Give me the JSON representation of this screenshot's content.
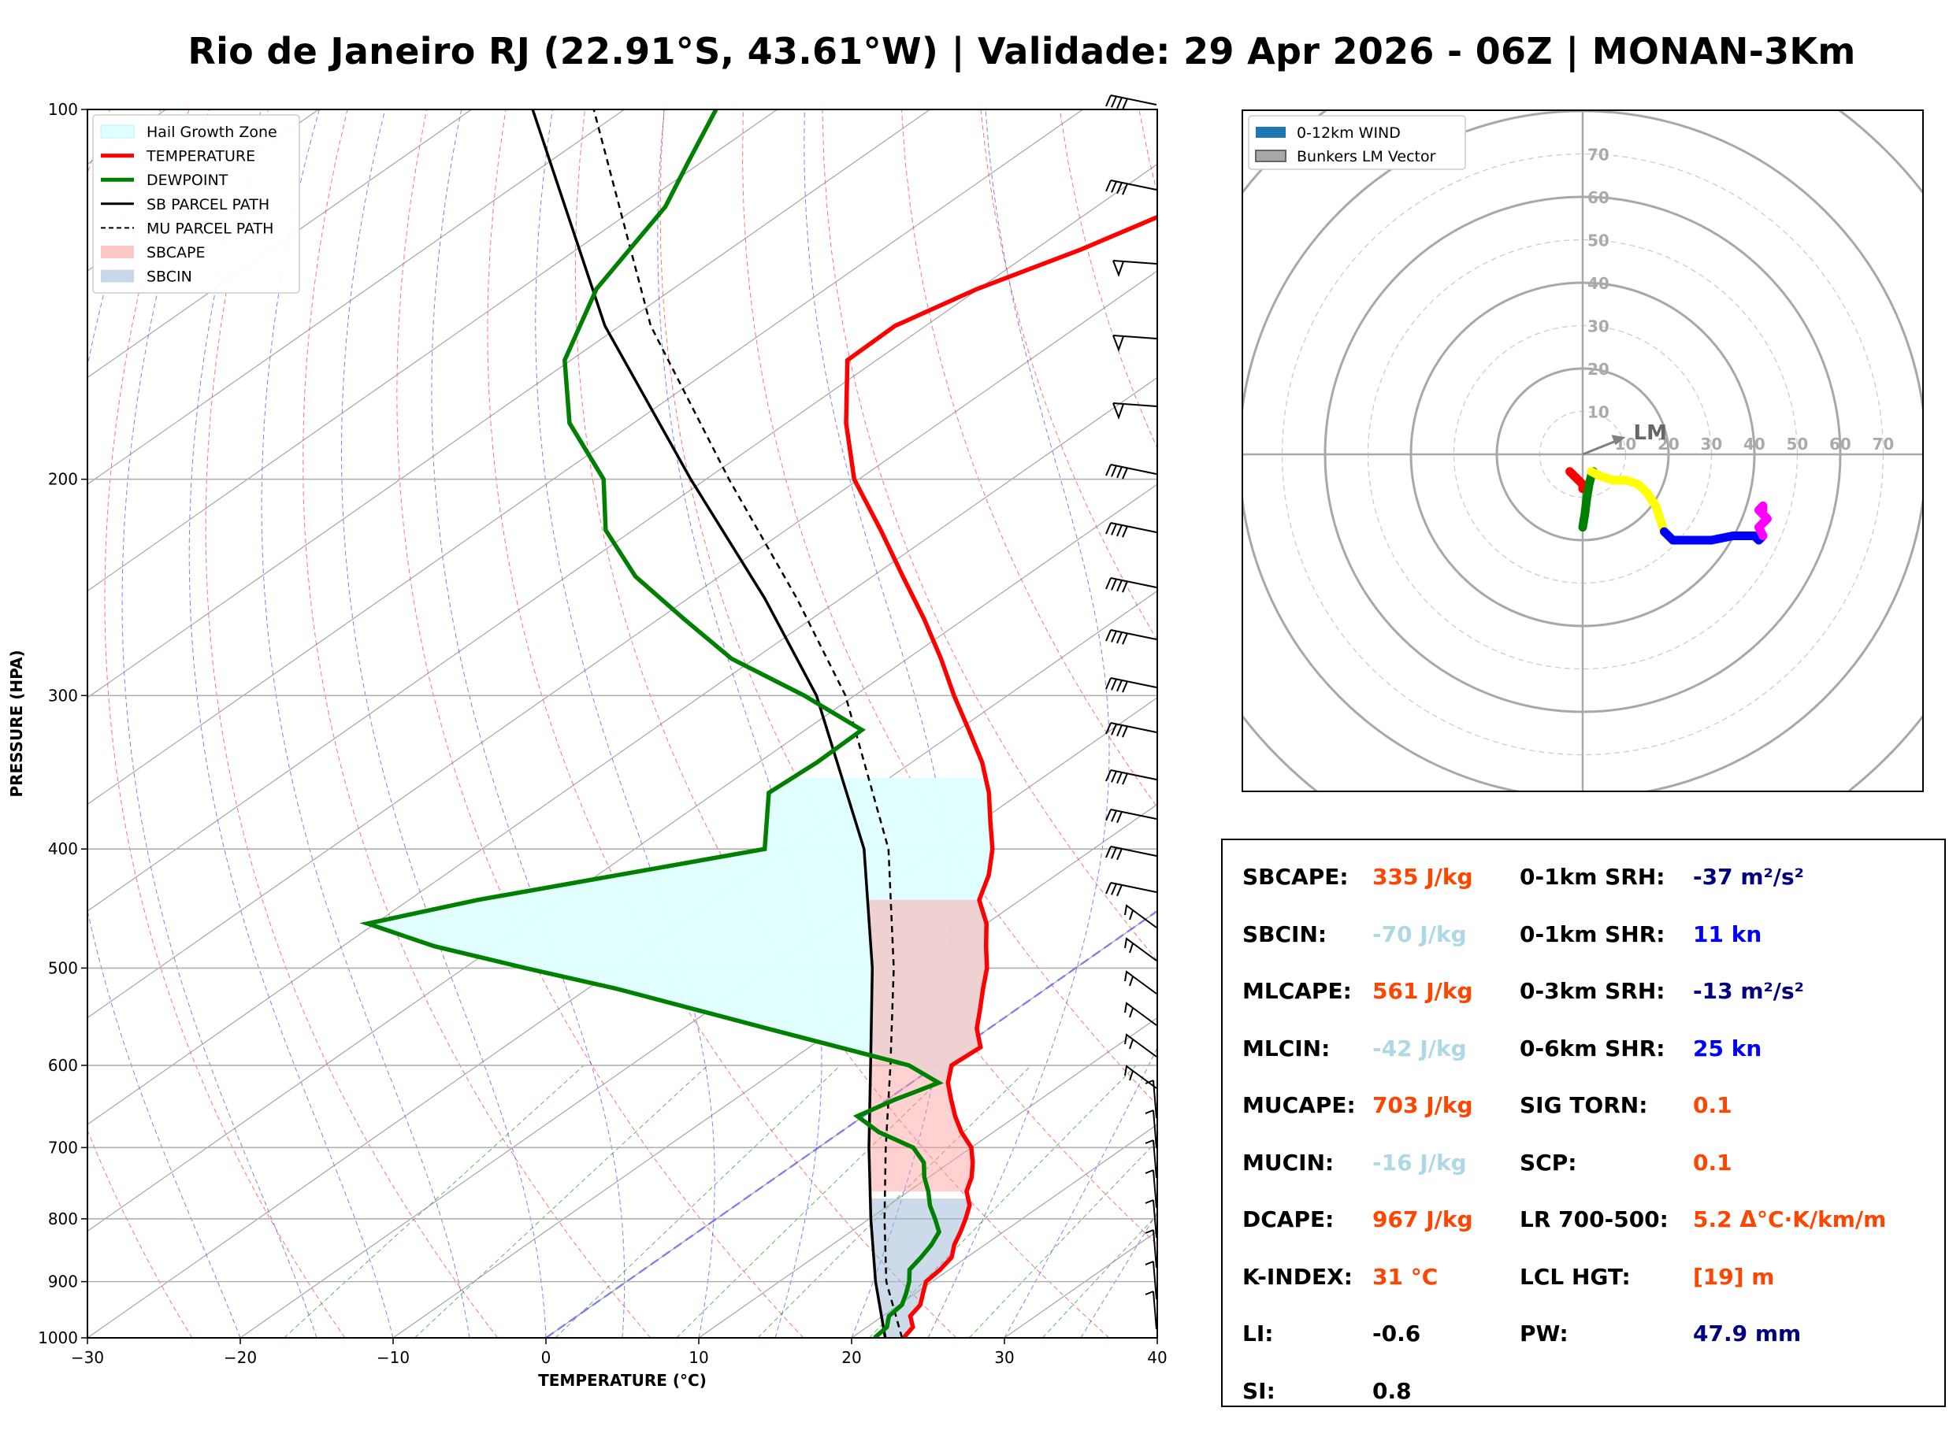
{
  "title": "Rio de Janeiro RJ (22.91°S, 43.61°W) | Validade: 29 Apr 2026 - 06Z | MONAN-3Km",
  "skewt": {
    "xlabel": "TEMPERATURE (°C)",
    "ylabel": "PRESSURE (HPA)",
    "xticks": [
      -30,
      -20,
      -10,
      0,
      10,
      20,
      30,
      40
    ],
    "xtick_labels": [
      "−30",
      "−20",
      "−10",
      "0",
      "10",
      "20",
      "30",
      "40"
    ],
    "yticks": [
      100,
      200,
      300,
      400,
      500,
      600,
      700,
      800,
      900,
      1000
    ],
    "ytick_labels": [
      "100",
      "200",
      "300",
      "400",
      "500",
      "600",
      "700",
      "800",
      "900",
      "1000"
    ],
    "legend": [
      "Hail Growth Zone",
      "TEMPERATURE",
      "DEWPOINT",
      "SB PARCEL PATH",
      "MU PARCEL PATH",
      "SBCAPE",
      "SBCIN"
    ]
  },
  "hodograph": {
    "legend": [
      "0-12km WIND",
      "Bunkers LM Vector"
    ],
    "ring_labels": [
      "10",
      "20",
      "30",
      "40",
      "50",
      "60",
      "70"
    ],
    "lm_label": "LM"
  },
  "stats": {
    "left": [
      {
        "label": "SBCAPE:",
        "value": "335 J/kg",
        "color": "#ff4500"
      },
      {
        "label": "SBCIN:",
        "value": "-70 J/kg",
        "color": "#add8e6"
      },
      {
        "label": "MLCAPE:",
        "value": "561 J/kg",
        "color": "#ff4500"
      },
      {
        "label": "MLCIN:",
        "value": "-42 J/kg",
        "color": "#add8e6"
      },
      {
        "label": "MUCAPE:",
        "value": "703 J/kg",
        "color": "#ff4500"
      },
      {
        "label": "MUCIN:",
        "value": "-16 J/kg",
        "color": "#add8e6"
      },
      {
        "label": "DCAPE:",
        "value": "967 J/kg",
        "color": "#ff4500"
      },
      {
        "label": "K-INDEX:",
        "value": "31 °C",
        "color": "#ff4500"
      },
      {
        "label": "LI:",
        "value": "-0.6",
        "color": "#000000"
      },
      {
        "label": "SI:",
        "value": "0.8",
        "color": "#000000"
      }
    ],
    "right": [
      {
        "label": "0-1km SRH:",
        "value": "-37 m²/s²",
        "color": "#000080"
      },
      {
        "label": "0-1km SHR:",
        "value": "11 kn",
        "color": "#0000ff"
      },
      {
        "label": "0-3km SRH:",
        "value": "-13 m²/s²",
        "color": "#000080"
      },
      {
        "label": "0-6km SHR:",
        "value": "25 kn",
        "color": "#0000ff"
      },
      {
        "label": "SIG TORN:",
        "value": "0.1",
        "color": "#ff4500"
      },
      {
        "label": "SCP:",
        "value": "0.1",
        "color": "#ff4500"
      },
      {
        "label": "LR 700-500:",
        "value": "5.2 Δ°C·K/km/m",
        "color": "#ff4500"
      },
      {
        "label": "LCL HGT:",
        "value": "[19] m",
        "color": "#ff4500"
      },
      {
        "label": "PW:",
        "value": "47.9 mm",
        "color": "#000080"
      }
    ]
  },
  "chart_data": [
    {
      "type": "line",
      "chart": "skew-t",
      "xlabel": "TEMPERATURE (°C)",
      "ylabel": "PRESSURE (HPA)",
      "xlim": [
        -30,
        40
      ],
      "ylim": [
        1000,
        100
      ],
      "yscale": "log",
      "skew_deg_per_log": 50,
      "grid": true,
      "legend_position": "upper-left",
      "series": [
        {
          "name": "TEMPERATURE",
          "color": "#ff0000",
          "p": [
            1000,
            980,
            960,
            940,
            920,
            900,
            880,
            860,
            840,
            820,
            800,
            780,
            760,
            740,
            720,
            700,
            680,
            660,
            640,
            620,
            600,
            580,
            560,
            540,
            520,
            500,
            480,
            460,
            440,
            420,
            400,
            380,
            360,
            340,
            320,
            300,
            280,
            260,
            240,
            220,
            200,
            180,
            160,
            150,
            140,
            130,
            120,
            110,
            100
          ],
          "t": [
            23.4,
            23.0,
            21.8,
            21.4,
            20.5,
            19.6,
            19.4,
            19.0,
            18.0,
            17.2,
            16.3,
            15.3,
            13.8,
            12.8,
            11.5,
            10.0,
            7.9,
            6.0,
            4.2,
            2.4,
            1.0,
            1.2,
            -0.8,
            -2.4,
            -4.1,
            -5.8,
            -7.9,
            -10.0,
            -12.7,
            -14.4,
            -16.6,
            -19.3,
            -22.1,
            -25.4,
            -29.3,
            -33.5,
            -37.8,
            -42.6,
            -48.0,
            -53.8,
            -60.3,
            -66.1,
            -71.9,
            -72.0,
            -70.1,
            -67.0,
            -64.4,
            -60.8,
            -56.8
          ]
        },
        {
          "name": "DEWPOINT",
          "color": "#008000",
          "p": [
            1000,
            980,
            960,
            940,
            920,
            900,
            880,
            860,
            840,
            820,
            800,
            780,
            760,
            740,
            720,
            700,
            680,
            660,
            640,
            620,
            600,
            560,
            520,
            500,
            480,
            460,
            440,
            400,
            360,
            340,
            320,
            300,
            280,
            260,
            240,
            220,
            200,
            180,
            160,
            140,
            120,
            110,
            100
          ],
          "t": [
            21.5,
            21.3,
            20.4,
            20.2,
            19.4,
            18.5,
            17.4,
            17.0,
            16.5,
            15.8,
            14.3,
            12.7,
            11.3,
            9.7,
            8.3,
            6.2,
            2.5,
            -0.4,
            0.5,
            1.8,
            -1.8,
            -14.5,
            -28.0,
            -36.0,
            -44.0,
            -50.5,
            -45.5,
            -31.5,
            -36.5,
            -36.2,
            -36.3,
            -43.3,
            -51.5,
            -58.3,
            -65.5,
            -71.8,
            -76.7,
            -84.2,
            -90.4,
            -95.0,
            -98.2,
            -101.0,
            -104.0
          ]
        },
        {
          "name": "SB PARCEL PATH",
          "color": "#000000",
          "dash": "",
          "p": [
            1000,
            900,
            800,
            700,
            600,
            500,
            400,
            300,
            250,
            200,
            150,
            100
          ],
          "t": [
            22.2,
            16.3,
            10.1,
            3.3,
            -4.3,
            -13.3,
            -25.0,
            -42.5,
            -55.0,
            -71.0,
            -91.0,
            -116.0
          ]
        },
        {
          "name": "MU PARCEL PATH",
          "color": "#000000",
          "dash": "8,6",
          "p": [
            1000,
            900,
            800,
            700,
            600,
            500,
            400,
            300,
            250,
            200,
            150,
            100
          ],
          "t": [
            23.3,
            17.0,
            11.0,
            4.4,
            -3.0,
            -11.9,
            -23.4,
            -40.6,
            -52.9,
            -68.5,
            -88.0,
            -112.0
          ]
        }
      ]
    },
    {
      "type": "line",
      "chart": "hodograph",
      "units": "kn",
      "rings": [
        10,
        20,
        30,
        40,
        50,
        60,
        70
      ],
      "series": [
        {
          "name": "0-12km WIND",
          "color": "#ff0000",
          "u": [
            0,
            -2,
            -3,
            -1,
            0,
            0
          ],
          "v": [
            -7,
            -5,
            -4,
            -6,
            -7,
            -8
          ]
        },
        {
          "name": "0-12km WIND",
          "color": "#008000",
          "u": [
            0,
            0.5,
            1,
            1.5,
            2,
            2.5
          ],
          "v": [
            -17,
            -14,
            -10,
            -7,
            -5,
            -4
          ]
        },
        {
          "name": "0-12km WIND",
          "color": "#ffff00",
          "u": [
            2,
            4,
            7,
            10,
            13,
            15,
            17,
            18,
            19
          ],
          "v": [
            -4,
            -5,
            -6,
            -6,
            -7,
            -9,
            -12,
            -15,
            -18
          ]
        },
        {
          "name": "0-12km WIND",
          "color": "#0000ff",
          "u": [
            19,
            21,
            26,
            30,
            35,
            38,
            40,
            41,
            42
          ],
          "v": [
            -18,
            -20,
            -20,
            -20,
            -19,
            -19,
            -19,
            -20,
            -19
          ]
        },
        {
          "name": "0-12km WIND",
          "color": "#ff00ff",
          "u": [
            42,
            41,
            42,
            43,
            42,
            41,
            42,
            42
          ],
          "v": [
            -19,
            -17,
            -16,
            -15,
            -14,
            -13,
            -12,
            -13
          ]
        }
      ],
      "lm_vector": {
        "u": 10,
        "v": 4
      }
    }
  ]
}
